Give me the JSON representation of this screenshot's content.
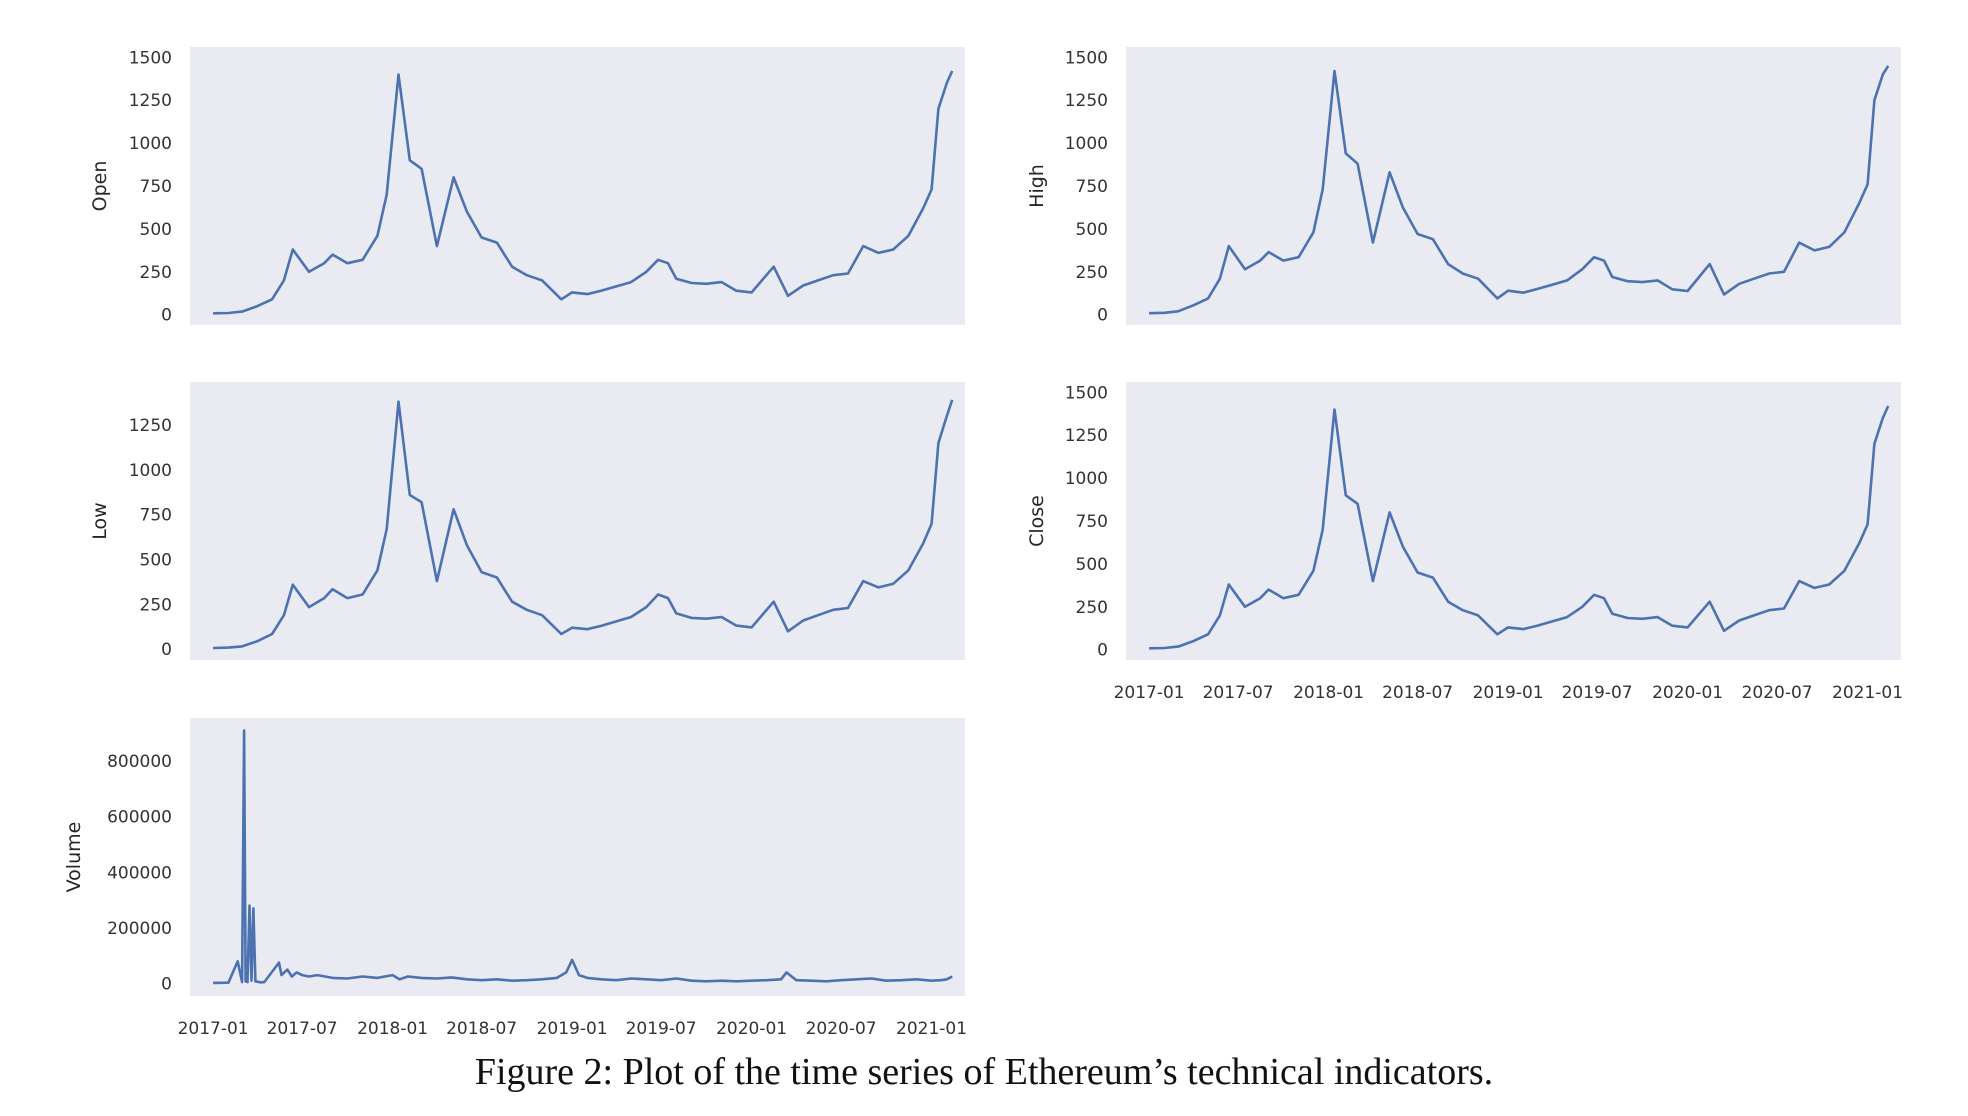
{
  "caption": "Figure 2: Plot of the time series of Ethereum’s technical indicators.",
  "colors": {
    "line": "#4c72b0",
    "panel_background": "#eaeaf2"
  },
  "chart_data": [
    {
      "type": "line",
      "ylabel": "Open",
      "yticks": [
        0,
        250,
        500,
        750,
        1000,
        1250,
        1500
      ],
      "ylim": [
        -60,
        1560
      ],
      "xlim": [
        "2016-11-15",
        "2021-03-10"
      ],
      "grid": false,
      "x": [
        "2017-01-01",
        "2017-02-01",
        "2017-03-01",
        "2017-04-01",
        "2017-05-01",
        "2017-05-25",
        "2017-06-12",
        "2017-07-15",
        "2017-08-15",
        "2017-09-01",
        "2017-10-01",
        "2017-11-01",
        "2017-12-01",
        "2017-12-20",
        "2018-01-13",
        "2018-02-05",
        "2018-03-01",
        "2018-04-01",
        "2018-05-05",
        "2018-06-01",
        "2018-07-01",
        "2018-08-01",
        "2018-09-01",
        "2018-10-01",
        "2018-11-01",
        "2018-12-10",
        "2019-01-01",
        "2019-02-01",
        "2019-03-01",
        "2019-04-01",
        "2019-05-01",
        "2019-06-01",
        "2019-06-25",
        "2019-07-15",
        "2019-08-01",
        "2019-09-01",
        "2019-10-01",
        "2019-11-01",
        "2019-12-01",
        "2020-01-01",
        "2020-02-15",
        "2020-03-15",
        "2020-04-15",
        "2020-05-15",
        "2020-06-15",
        "2020-07-15",
        "2020-08-15",
        "2020-09-15",
        "2020-10-15",
        "2020-11-15",
        "2020-12-15",
        "2021-01-01",
        "2021-01-15",
        "2021-02-01",
        "2021-02-12"
      ],
      "y": [
        8,
        10,
        18,
        50,
        90,
        200,
        380,
        250,
        300,
        350,
        300,
        320,
        460,
        700,
        1400,
        900,
        850,
        400,
        800,
        600,
        450,
        420,
        280,
        230,
        200,
        90,
        130,
        120,
        140,
        165,
        190,
        250,
        320,
        300,
        210,
        185,
        180,
        190,
        140,
        130,
        280,
        110,
        170,
        200,
        230,
        240,
        400,
        360,
        380,
        460,
        620,
        730,
        1200,
        1350,
        1420
      ]
    },
    {
      "type": "line",
      "ylabel": "High",
      "yticks": [
        0,
        250,
        500,
        750,
        1000,
        1250,
        1500
      ],
      "ylim": [
        -60,
        1560
      ],
      "xlim": [
        "2016-11-15",
        "2021-03-10"
      ],
      "grid": false,
      "x": [
        "2017-01-01",
        "2017-02-01",
        "2017-03-01",
        "2017-04-01",
        "2017-05-01",
        "2017-05-25",
        "2017-06-12",
        "2017-07-15",
        "2017-08-15",
        "2017-09-01",
        "2017-10-01",
        "2017-11-01",
        "2017-12-01",
        "2017-12-20",
        "2018-01-13",
        "2018-02-05",
        "2018-03-01",
        "2018-04-01",
        "2018-05-05",
        "2018-06-01",
        "2018-07-01",
        "2018-08-01",
        "2018-09-01",
        "2018-10-01",
        "2018-11-01",
        "2018-12-10",
        "2019-01-01",
        "2019-02-01",
        "2019-03-01",
        "2019-04-01",
        "2019-05-01",
        "2019-06-01",
        "2019-06-25",
        "2019-07-15",
        "2019-08-01",
        "2019-09-01",
        "2019-10-01",
        "2019-11-01",
        "2019-12-01",
        "2020-01-01",
        "2020-02-15",
        "2020-03-15",
        "2020-04-15",
        "2020-05-15",
        "2020-06-15",
        "2020-07-15",
        "2020-08-15",
        "2020-09-15",
        "2020-10-15",
        "2020-11-15",
        "2020-12-15",
        "2021-01-01",
        "2021-01-15",
        "2021-02-01",
        "2021-02-12"
      ],
      "y": [
        9,
        11,
        20,
        55,
        95,
        210,
        400,
        265,
        315,
        365,
        315,
        335,
        480,
        730,
        1420,
        940,
        880,
        420,
        830,
        625,
        470,
        440,
        295,
        240,
        210,
        95,
        140,
        128,
        150,
        175,
        200,
        265,
        335,
        315,
        220,
        195,
        190,
        200,
        148,
        138,
        295,
        118,
        180,
        210,
        240,
        250,
        420,
        375,
        395,
        480,
        650,
        760,
        1250,
        1400,
        1450
      ]
    },
    {
      "type": "line",
      "ylabel": "Low",
      "yticks": [
        0,
        250,
        500,
        750,
        1000,
        1250
      ],
      "ylim": [
        -60,
        1490
      ],
      "xlim": [
        "2016-11-15",
        "2021-03-10"
      ],
      "grid": false,
      "x": [
        "2017-01-01",
        "2017-02-01",
        "2017-03-01",
        "2017-04-01",
        "2017-05-01",
        "2017-05-25",
        "2017-06-12",
        "2017-07-15",
        "2017-08-15",
        "2017-09-01",
        "2017-10-01",
        "2017-11-01",
        "2017-12-01",
        "2017-12-20",
        "2018-01-13",
        "2018-02-05",
        "2018-03-01",
        "2018-04-01",
        "2018-05-05",
        "2018-06-01",
        "2018-07-01",
        "2018-08-01",
        "2018-09-01",
        "2018-10-01",
        "2018-11-01",
        "2018-12-10",
        "2019-01-01",
        "2019-02-01",
        "2019-03-01",
        "2019-04-01",
        "2019-05-01",
        "2019-06-01",
        "2019-06-25",
        "2019-07-15",
        "2019-08-01",
        "2019-09-01",
        "2019-10-01",
        "2019-11-01",
        "2019-12-01",
        "2020-01-01",
        "2020-02-15",
        "2020-03-15",
        "2020-04-15",
        "2020-05-15",
        "2020-06-15",
        "2020-07-15",
        "2020-08-15",
        "2020-09-15",
        "2020-10-15",
        "2020-11-15",
        "2020-12-15",
        "2021-01-01",
        "2021-01-15",
        "2021-02-01",
        "2021-02-12"
      ],
      "y": [
        7,
        9,
        16,
        45,
        85,
        190,
        360,
        235,
        285,
        335,
        285,
        305,
        440,
        670,
        1380,
        860,
        820,
        380,
        780,
        580,
        430,
        400,
        265,
        220,
        190,
        85,
        120,
        112,
        130,
        155,
        180,
        235,
        305,
        285,
        200,
        175,
        170,
        180,
        132,
        122,
        265,
        100,
        160,
        190,
        220,
        230,
        380,
        345,
        365,
        440,
        590,
        700,
        1150,
        1300,
        1390
      ]
    },
    {
      "type": "line",
      "ylabel": "Close",
      "yticks": [
        0,
        250,
        500,
        750,
        1000,
        1250,
        1500
      ],
      "ylim": [
        -60,
        1560
      ],
      "xlim": [
        "2016-11-15",
        "2021-03-10"
      ],
      "xticks": [
        "2017-01",
        "2017-07",
        "2018-01",
        "2018-07",
        "2019-01",
        "2019-07",
        "2020-01",
        "2020-07",
        "2021-01"
      ],
      "grid": false,
      "x": [
        "2017-01-01",
        "2017-02-01",
        "2017-03-01",
        "2017-04-01",
        "2017-05-01",
        "2017-05-25",
        "2017-06-12",
        "2017-07-15",
        "2017-08-15",
        "2017-09-01",
        "2017-10-01",
        "2017-11-01",
        "2017-12-01",
        "2017-12-20",
        "2018-01-13",
        "2018-02-05",
        "2018-03-01",
        "2018-04-01",
        "2018-05-05",
        "2018-06-01",
        "2018-07-01",
        "2018-08-01",
        "2018-09-01",
        "2018-10-01",
        "2018-11-01",
        "2018-12-10",
        "2019-01-01",
        "2019-02-01",
        "2019-03-01",
        "2019-04-01",
        "2019-05-01",
        "2019-06-01",
        "2019-06-25",
        "2019-07-15",
        "2019-08-01",
        "2019-09-01",
        "2019-10-01",
        "2019-11-01",
        "2019-12-01",
        "2020-01-01",
        "2020-02-15",
        "2020-03-15",
        "2020-04-15",
        "2020-05-15",
        "2020-06-15",
        "2020-07-15",
        "2020-08-15",
        "2020-09-15",
        "2020-10-15",
        "2020-11-15",
        "2020-12-15",
        "2021-01-01",
        "2021-01-15",
        "2021-02-01",
        "2021-02-12"
      ],
      "y": [
        8,
        10,
        18,
        50,
        90,
        200,
        380,
        250,
        300,
        350,
        300,
        320,
        460,
        700,
        1400,
        900,
        850,
        400,
        800,
        600,
        450,
        420,
        280,
        230,
        200,
        90,
        130,
        120,
        140,
        165,
        190,
        250,
        320,
        300,
        210,
        185,
        180,
        190,
        140,
        130,
        280,
        110,
        170,
        200,
        230,
        240,
        400,
        360,
        380,
        460,
        620,
        730,
        1200,
        1350,
        1420
      ]
    },
    {
      "type": "line",
      "ylabel": "Volume",
      "yticks": [
        0,
        200000,
        400000,
        600000,
        800000
      ],
      "ylim": [
        -45000,
        955000
      ],
      "xlim": [
        "2016-11-15",
        "2021-03-10"
      ],
      "xticks": [
        "2017-01",
        "2017-07",
        "2018-01",
        "2018-07",
        "2019-01",
        "2019-07",
        "2020-01",
        "2020-07",
        "2021-01"
      ],
      "grid": false,
      "x": [
        "2017-01-01",
        "2017-02-01",
        "2017-02-20",
        "2017-03-01",
        "2017-03-05",
        "2017-03-08",
        "2017-03-12",
        "2017-03-16",
        "2017-03-20",
        "2017-03-24",
        "2017-03-28",
        "2017-04-02",
        "2017-04-07",
        "2017-04-15",
        "2017-05-15",
        "2017-05-20",
        "2017-06-01",
        "2017-06-10",
        "2017-06-20",
        "2017-07-01",
        "2017-07-15",
        "2017-08-01",
        "2017-09-01",
        "2017-10-01",
        "2017-11-01",
        "2017-12-01",
        "2018-01-01",
        "2018-01-15",
        "2018-02-01",
        "2018-03-01",
        "2018-04-01",
        "2018-05-01",
        "2018-06-01",
        "2018-07-01",
        "2018-08-01",
        "2018-09-01",
        "2018-10-01",
        "2018-11-01",
        "2018-12-01",
        "2018-12-20",
        "2019-01-01",
        "2019-01-15",
        "2019-02-01",
        "2019-03-01",
        "2019-04-01",
        "2019-05-01",
        "2019-06-01",
        "2019-07-01",
        "2019-08-01",
        "2019-09-01",
        "2019-10-01",
        "2019-11-01",
        "2019-12-01",
        "2020-01-01",
        "2020-02-01",
        "2020-03-01",
        "2020-03-12",
        "2020-04-01",
        "2020-05-01",
        "2020-06-01",
        "2020-07-01",
        "2020-08-01",
        "2020-09-01",
        "2020-10-01",
        "2020-11-01",
        "2020-12-01",
        "2021-01-01",
        "2021-01-20",
        "2021-02-01",
        "2021-02-12"
      ],
      "y": [
        2000,
        3000,
        80000,
        5000,
        910000,
        8000,
        5000,
        280000,
        10000,
        270000,
        8000,
        6000,
        4000,
        5000,
        75000,
        30000,
        50000,
        25000,
        40000,
        30000,
        25000,
        30000,
        20000,
        18000,
        25000,
        20000,
        30000,
        15000,
        25000,
        20000,
        18000,
        22000,
        15000,
        12000,
        15000,
        10000,
        12000,
        15000,
        20000,
        40000,
        85000,
        30000,
        20000,
        15000,
        12000,
        18000,
        15000,
        12000,
        18000,
        10000,
        8000,
        10000,
        8000,
        10000,
        12000,
        15000,
        40000,
        12000,
        10000,
        8000,
        12000,
        15000,
        18000,
        10000,
        12000,
        15000,
        10000,
        12000,
        15000,
        25000
      ]
    }
  ]
}
